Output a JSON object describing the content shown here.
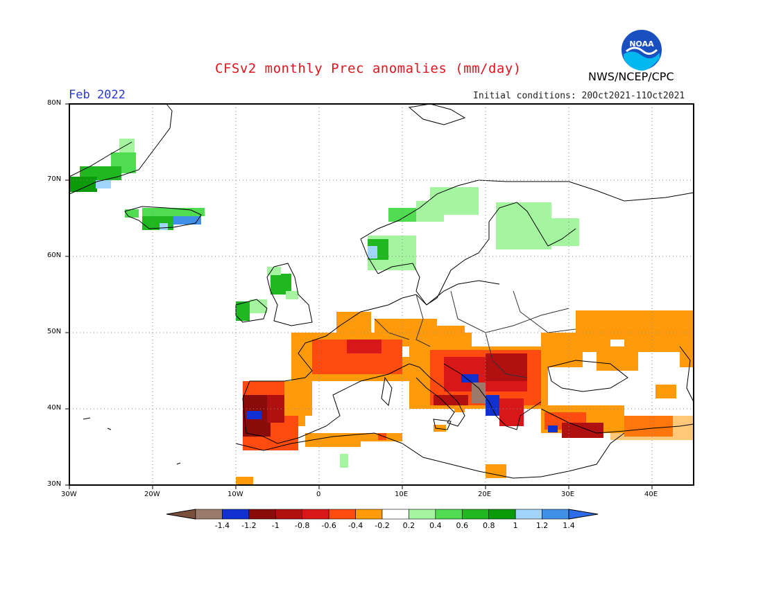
{
  "title": "CFSv2 monthly Prec anomalies (mm/day)",
  "agency": "NWS/NCEP/CPC",
  "logo_text": "NOAA",
  "month": "Feb 2022",
  "initial_conditions": "Initial conditions: 20Oct2021-11Oct2021",
  "lat_labels": [
    "80N",
    "70N",
    "60N",
    "50N",
    "40N",
    "30N"
  ],
  "lon_labels": [
    "30W",
    "20W",
    "10W",
    "0",
    "10E",
    "20E",
    "30E",
    "40E"
  ],
  "colorbar": {
    "colors": [
      "#7a4f3c",
      "#9b7a6c",
      "#1030d0",
      "#8b0a0a",
      "#b01010",
      "#d81818",
      "#ff4a10",
      "#ff9a0a",
      "#ffffff",
      "#a4f4a0",
      "#50dc50",
      "#20b820",
      "#0a9a0a",
      "#a0d4f8",
      "#4090e8",
      "#2c6ce8"
    ],
    "labels": [
      "-1.4",
      "-1.2",
      "-1",
      "-0.8",
      "-0.6",
      "-0.4",
      "-0.2",
      "0.2",
      "0.4",
      "0.6",
      "0.8",
      "1",
      "1.2",
      "1.4"
    ]
  }
}
